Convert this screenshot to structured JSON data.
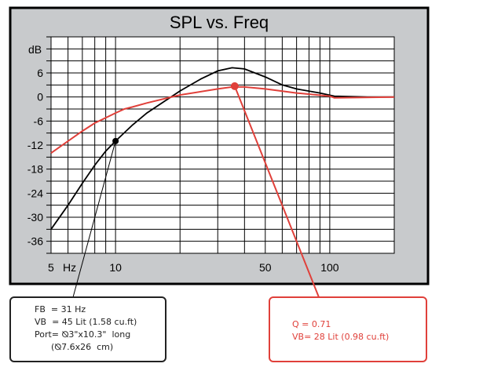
{
  "chart_data": {
    "type": "line",
    "title": "SPL vs. Freq",
    "ylabel": "dB",
    "xlabel": "Hz",
    "x_scale": "log",
    "xlim": [
      5,
      200
    ],
    "ylim": [
      -39,
      15
    ],
    "grid": true,
    "y_ticks": [
      6,
      0,
      -6,
      -12,
      -18,
      -24,
      -30,
      -36
    ],
    "y_tick_labels": [
      "6",
      "0",
      "-6",
      "-12",
      "-18",
      "-24",
      "-30",
      "-36"
    ],
    "x_ticks": [
      5,
      10,
      50,
      100
    ],
    "x_tick_labels": [
      "5",
      "10",
      "50",
      "100"
    ],
    "background_color": "#c8cacc",
    "series": [
      {
        "color": "#000000",
        "x": [
          5,
          6,
          7,
          8,
          9,
          10,
          12,
          14,
          17,
          20,
          25,
          30,
          35,
          40,
          50,
          60,
          70,
          90,
          105,
          150,
          200
        ],
        "y": [
          -33,
          -27,
          -21.5,
          -17,
          -13.5,
          -11,
          -7,
          -4,
          -1,
          1.5,
          4.5,
          6.5,
          7.3,
          7,
          5,
          3,
          2,
          1,
          0.2,
          0,
          0
        ],
        "marker": {
          "x": 10,
          "y": -11
        }
      },
      {
        "color": "#e0403a",
        "x": [
          5,
          6,
          7,
          8,
          10,
          11,
          12,
          14,
          20,
          30,
          35,
          40,
          50,
          70,
          100,
          105,
          200
        ],
        "y": [
          -14,
          -11,
          -8.5,
          -6.5,
          -4,
          -3,
          -2.5,
          -1.5,
          0.5,
          2,
          2.5,
          2.5,
          2,
          1,
          0.2,
          -0.2,
          0
        ],
        "marker": {
          "x": 36,
          "y": 2.7
        }
      }
    ],
    "annotations": [
      {
        "color": "#222222",
        "lines": [
          "FB  = 31 Hz",
          "VB  = 45 Lit (1.58 cu.ft)",
          "Port= ⦰3\"x10.3\"  long",
          "      (⦰7.6x26  cm)"
        ]
      },
      {
        "color": "#e0403a",
        "lines": [
          "Q = 0.71",
          "VB= 28 Lit (0.98 cu.ft)"
        ]
      }
    ]
  }
}
